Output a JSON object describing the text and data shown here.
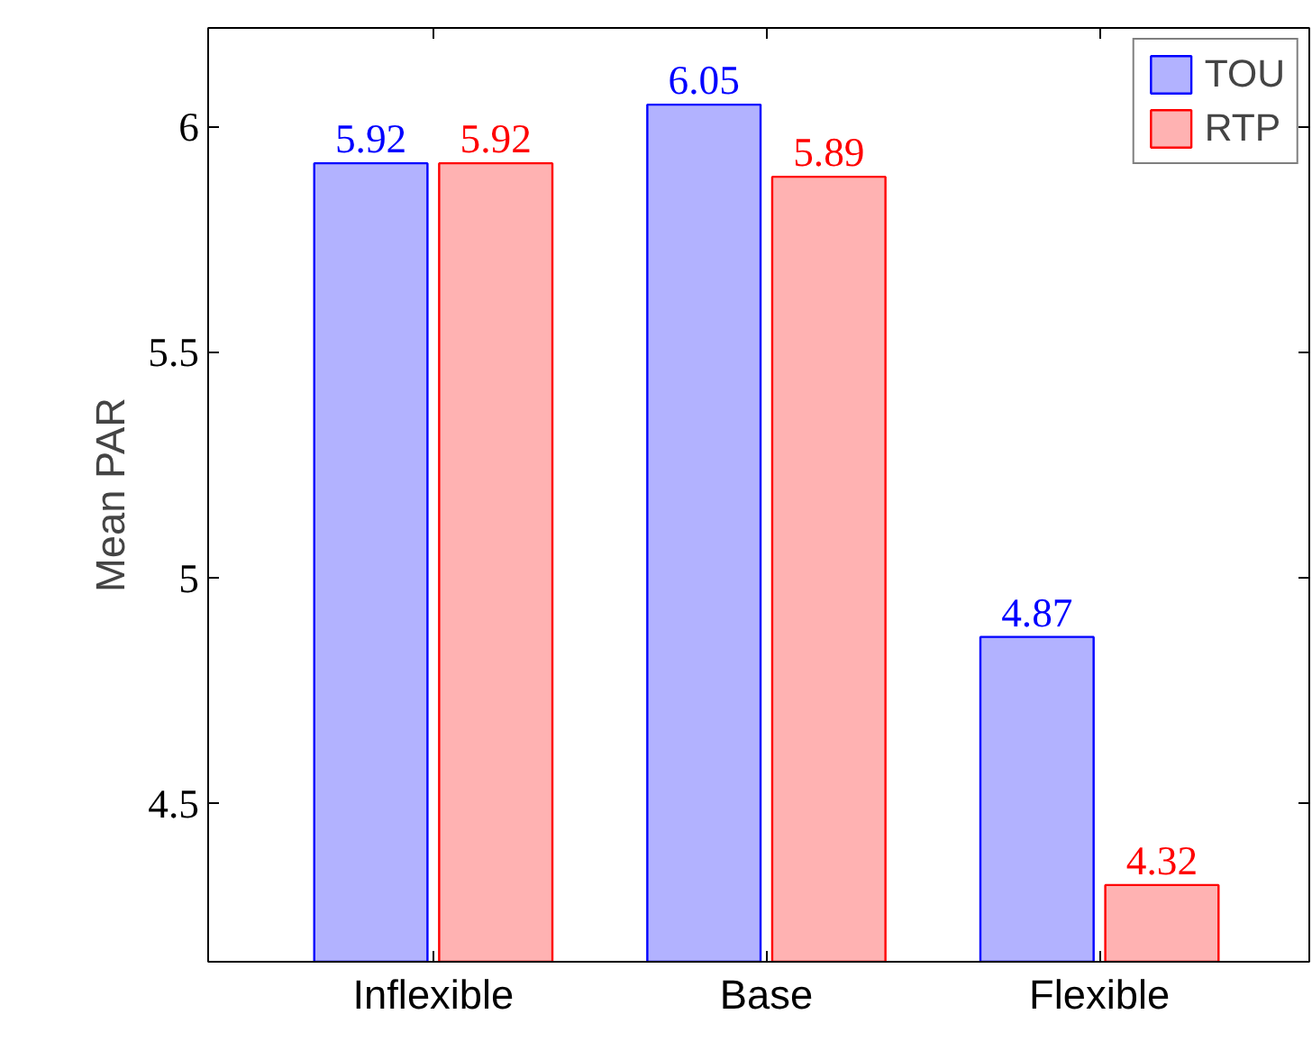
{
  "chart_data": {
    "type": "bar",
    "ylabel": "Mean PAR",
    "categories": [
      "Inflexible",
      "Base",
      "Flexible"
    ],
    "series": [
      {
        "name": "TOU",
        "color": "#0000ff",
        "values": [
          5.92,
          6.05,
          4.87
        ]
      },
      {
        "name": "RTP",
        "color": "#ff0000",
        "values": [
          5.92,
          5.89,
          4.32
        ]
      }
    ],
    "ylim": [
      4.15,
      6.22
    ],
    "yticks": [
      4.5,
      5,
      5.5,
      6
    ],
    "data_labels": true,
    "legend": "top right",
    "grid": false
  }
}
